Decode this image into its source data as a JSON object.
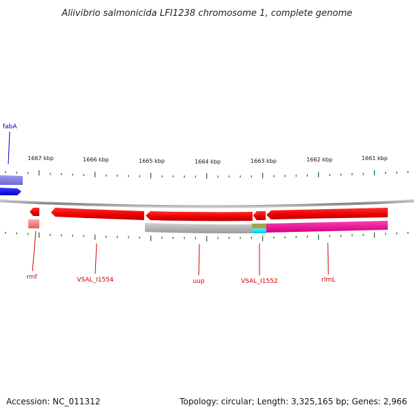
{
  "title": "Aliivibrio salmonicida LFI1238 chromosome 1, complete genome",
  "footer": {
    "accession": "Accession: NC_011312",
    "summary": "Topology: circular; Length: 3,325,165 bp; Genes: 2,966"
  },
  "ruler": {
    "labels": [
      "1667 kbp",
      "1666 kbp",
      "1665 kbp",
      "1664 kbp",
      "1663 kbp",
      "1662 kbp",
      "1661 kbp"
    ]
  },
  "genes": {
    "fabA": "fabA",
    "rmf": "rmf",
    "vsal1554": "VSAL_I1554",
    "uup": "uup",
    "vsal1552": "VSAL_I1552",
    "rlmL": "rlmL"
  },
  "colors": {
    "forward_feature": "#0000ee",
    "forward_label": "#0000aa",
    "reverse_feature": "#ee0000",
    "reverse_label": "#cc0000",
    "tick": "#1a7a1a",
    "backbone": "#8a8a8a",
    "gray_bar": "#b8b8b8",
    "magenta_bar": "#ee1090",
    "cyan_bar": "#18e0f0",
    "olive_bar": "#a8a050",
    "pink_bar": "#f08080"
  }
}
